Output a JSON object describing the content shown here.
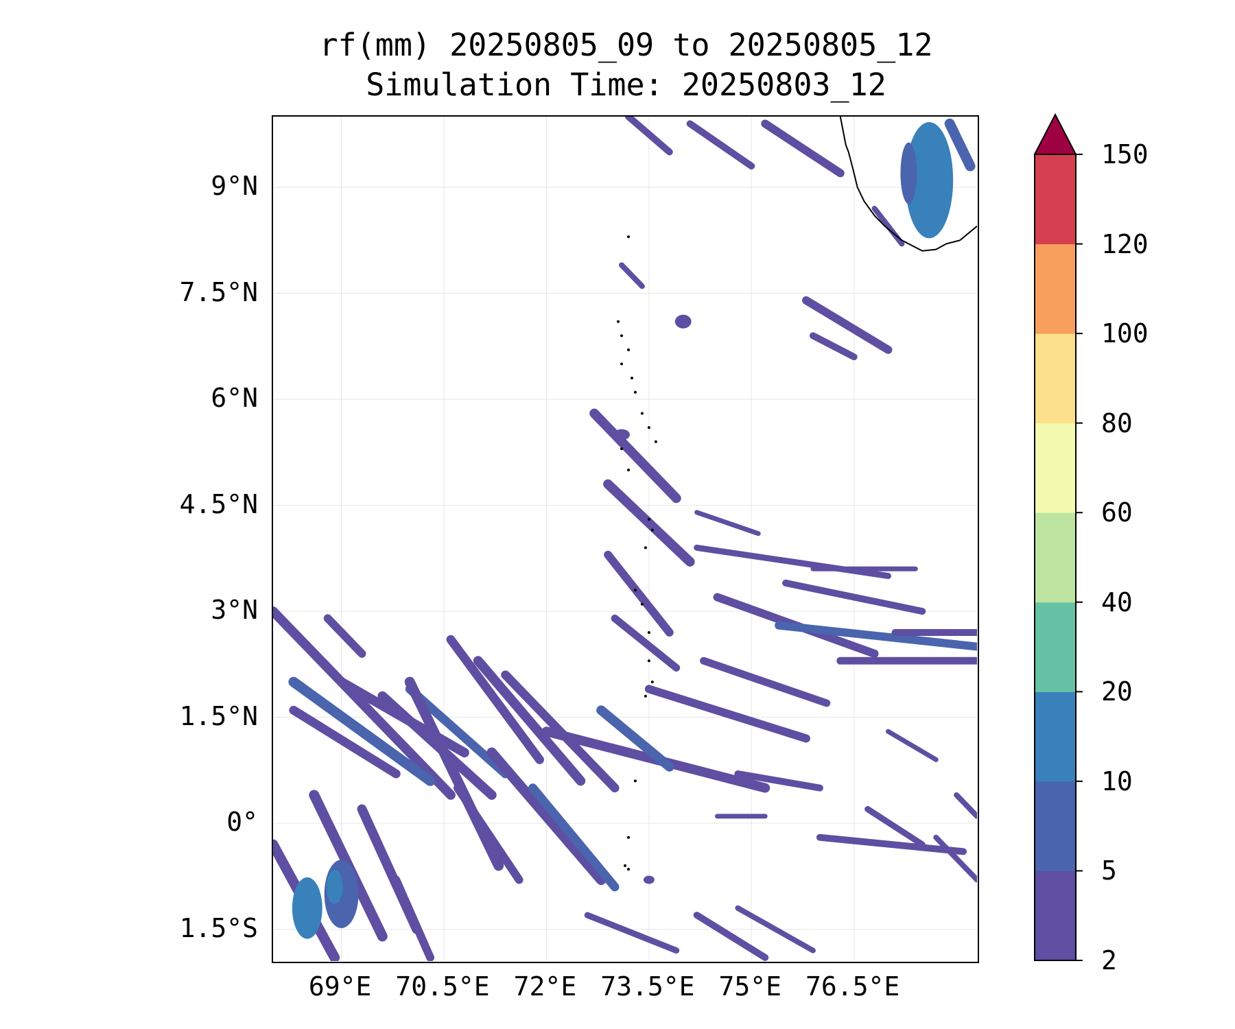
{
  "title": {
    "line1": "rf(mm) 20250805_09 to 20250805_12",
    "line2": "Simulation Time: 20250803_12"
  },
  "map": {
    "lon_range": [
      68.0,
      78.3
    ],
    "lat_range": [
      -1.95,
      10.0
    ],
    "gridlines": true,
    "grid_color": "#e6e6e6",
    "coastline_color": "#000000",
    "x_ticks": [
      {
        "lon": 69.0,
        "label": "69°E"
      },
      {
        "lon": 70.5,
        "label": "70.5°E"
      },
      {
        "lon": 72.0,
        "label": "72°E"
      },
      {
        "lon": 73.5,
        "label": "73.5°E"
      },
      {
        "lon": 75.0,
        "label": "75°E"
      },
      {
        "lon": 76.5,
        "label": "76.5°E"
      }
    ],
    "y_ticks": [
      {
        "lat": 9.0,
        "label": "9°N"
      },
      {
        "lat": 7.5,
        "label": "7.5°N"
      },
      {
        "lat": 6.0,
        "label": "6°N"
      },
      {
        "lat": 4.5,
        "label": "4.5°N"
      },
      {
        "lat": 3.0,
        "label": "3°N"
      },
      {
        "lat": 1.5,
        "label": "1.5°N"
      },
      {
        "lat": 0.0,
        "label": "0°"
      },
      {
        "lat": -1.5,
        "label": "1.5°S"
      }
    ],
    "rain_bands": [
      {
        "lon1": 68.0,
        "lat1": 3.0,
        "lon2": 70.6,
        "lat2": 0.4,
        "w": 0.14,
        "level": 0
      },
      {
        "lon1": 68.3,
        "lat1": 2.0,
        "lon2": 70.3,
        "lat2": 0.6,
        "w": 0.15,
        "level": 1
      },
      {
        "lon1": 68.3,
        "lat1": 1.6,
        "lon2": 69.8,
        "lat2": 0.7,
        "w": 0.13,
        "level": 0
      },
      {
        "lon1": 68.8,
        "lat1": 2.9,
        "lon2": 69.3,
        "lat2": 2.4,
        "w": 0.12,
        "level": 0
      },
      {
        "lon1": 69.0,
        "lat1": 2.0,
        "lon2": 70.8,
        "lat2": 1.0,
        "w": 0.14,
        "level": 0
      },
      {
        "lon1": 69.6,
        "lat1": 1.8,
        "lon2": 71.2,
        "lat2": 0.4,
        "w": 0.14,
        "level": 0
      },
      {
        "lon1": 70.0,
        "lat1": 1.9,
        "lon2": 71.4,
        "lat2": 0.7,
        "w": 0.13,
        "level": 1
      },
      {
        "lon1": 70.0,
        "lat1": 2.0,
        "lon2": 71.3,
        "lat2": -0.6,
        "w": 0.15,
        "level": 0
      },
      {
        "lon1": 70.6,
        "lat1": 2.6,
        "lon2": 71.9,
        "lat2": 0.9,
        "w": 0.13,
        "level": 0
      },
      {
        "lon1": 71.0,
        "lat1": 2.3,
        "lon2": 72.5,
        "lat2": 0.6,
        "w": 0.14,
        "level": 0
      },
      {
        "lon1": 71.4,
        "lat1": 2.1,
        "lon2": 73.0,
        "lat2": 0.5,
        "w": 0.13,
        "level": 0
      },
      {
        "lon1": 71.2,
        "lat1": 1.0,
        "lon2": 72.8,
        "lat2": -0.8,
        "w": 0.15,
        "level": 0
      },
      {
        "lon1": 71.8,
        "lat1": 0.5,
        "lon2": 73.0,
        "lat2": -0.9,
        "w": 0.13,
        "level": 1
      },
      {
        "lon1": 72.0,
        "lat1": 1.3,
        "lon2": 75.2,
        "lat2": 0.5,
        "w": 0.14,
        "level": 0
      },
      {
        "lon1": 72.8,
        "lat1": 1.6,
        "lon2": 73.8,
        "lat2": 0.8,
        "w": 0.14,
        "level": 1
      },
      {
        "lon1": 73.5,
        "lat1": 1.9,
        "lon2": 75.8,
        "lat2": 1.2,
        "w": 0.12,
        "level": 0
      },
      {
        "lon1": 74.3,
        "lat1": 2.3,
        "lon2": 76.1,
        "lat2": 1.7,
        "w": 0.11,
        "level": 0
      },
      {
        "lon1": 72.7,
        "lat1": 5.8,
        "lon2": 73.9,
        "lat2": 4.6,
        "w": 0.14,
        "level": 0
      },
      {
        "lon1": 72.9,
        "lat1": 4.8,
        "lon2": 74.1,
        "lat2": 3.7,
        "w": 0.14,
        "level": 0
      },
      {
        "lon1": 72.9,
        "lat1": 3.8,
        "lon2": 73.8,
        "lat2": 2.7,
        "w": 0.12,
        "level": 0
      },
      {
        "lon1": 73.0,
        "lat1": 2.9,
        "lon2": 73.9,
        "lat2": 2.2,
        "w": 0.11,
        "level": 0
      },
      {
        "lon1": 74.5,
        "lat1": 3.2,
        "lon2": 76.8,
        "lat2": 2.4,
        "w": 0.12,
        "level": 0
      },
      {
        "lon1": 75.4,
        "lat1": 2.8,
        "lon2": 78.3,
        "lat2": 2.5,
        "w": 0.12,
        "level": 1
      },
      {
        "lon1": 76.3,
        "lat1": 2.3,
        "lon2": 78.3,
        "lat2": 2.3,
        "w": 0.11,
        "level": 0
      },
      {
        "lon1": 77.1,
        "lat1": 2.7,
        "lon2": 78.3,
        "lat2": 2.7,
        "w": 0.1,
        "level": 0
      },
      {
        "lon1": 75.5,
        "lat1": 3.4,
        "lon2": 77.5,
        "lat2": 3.0,
        "w": 0.1,
        "level": 0
      },
      {
        "lon1": 74.2,
        "lat1": 3.9,
        "lon2": 77.0,
        "lat2": 3.5,
        "w": 0.09,
        "level": 0
      },
      {
        "lon1": 75.8,
        "lat1": 7.4,
        "lon2": 77.0,
        "lat2": 6.7,
        "w": 0.12,
        "level": 0
      },
      {
        "lon1": 75.9,
        "lat1": 6.9,
        "lon2": 76.5,
        "lat2": 6.6,
        "w": 0.1,
        "level": 0
      },
      {
        "lon1": 75.2,
        "lat1": 9.9,
        "lon2": 76.3,
        "lat2": 9.2,
        "w": 0.12,
        "level": 0
      },
      {
        "lon1": 74.1,
        "lat1": 9.9,
        "lon2": 75.0,
        "lat2": 9.3,
        "w": 0.1,
        "level": 0
      },
      {
        "lon1": 73.2,
        "lat1": 10.0,
        "lon2": 73.8,
        "lat2": 9.5,
        "w": 0.1,
        "level": 0
      },
      {
        "lon1": 77.9,
        "lat1": 9.9,
        "lon2": 78.2,
        "lat2": 9.3,
        "w": 0.15,
        "level": 1
      },
      {
        "lon1": 76.8,
        "lat1": 8.7,
        "lon2": 77.2,
        "lat2": 8.2,
        "w": 0.08,
        "level": 0
      },
      {
        "lon1": 73.1,
        "lat1": 7.9,
        "lon2": 73.4,
        "lat2": 7.6,
        "w": 0.08,
        "level": 0
      },
      {
        "lon1": 74.2,
        "lat1": 4.4,
        "lon2": 75.1,
        "lat2": 4.1,
        "w": 0.07,
        "level": 0
      },
      {
        "lon1": 68.0,
        "lat1": -0.3,
        "lon2": 68.9,
        "lat2": -1.9,
        "w": 0.15,
        "level": 0
      },
      {
        "lon1": 68.6,
        "lat1": 0.4,
        "lon2": 69.6,
        "lat2": -1.6,
        "w": 0.15,
        "level": 0
      },
      {
        "lon1": 69.3,
        "lat1": 0.2,
        "lon2": 70.1,
        "lat2": -1.5,
        "w": 0.14,
        "level": 0
      },
      {
        "lon1": 69.8,
        "lat1": -0.8,
        "lon2": 70.3,
        "lat2": -1.9,
        "w": 0.12,
        "level": 0
      },
      {
        "lon1": 70.7,
        "lat1": 0.5,
        "lon2": 71.6,
        "lat2": -0.8,
        "w": 0.12,
        "level": 0
      },
      {
        "lon1": 72.6,
        "lat1": -1.3,
        "lon2": 73.9,
        "lat2": -1.8,
        "w": 0.09,
        "level": 0
      },
      {
        "lon1": 74.2,
        "lat1": -1.3,
        "lon2": 75.2,
        "lat2": -1.9,
        "w": 0.1,
        "level": 0
      },
      {
        "lon1": 74.8,
        "lat1": -1.2,
        "lon2": 75.9,
        "lat2": -1.8,
        "w": 0.08,
        "level": 0
      },
      {
        "lon1": 74.8,
        "lat1": 0.7,
        "lon2": 76.0,
        "lat2": 0.5,
        "w": 0.1,
        "level": 0
      },
      {
        "lon1": 74.5,
        "lat1": 0.1,
        "lon2": 75.2,
        "lat2": 0.1,
        "w": 0.07,
        "level": 0
      },
      {
        "lon1": 76.0,
        "lat1": -0.2,
        "lon2": 78.1,
        "lat2": -0.4,
        "w": 0.1,
        "level": 0
      },
      {
        "lon1": 76.7,
        "lat1": 0.2,
        "lon2": 77.5,
        "lat2": -0.3,
        "w": 0.09,
        "level": 0
      },
      {
        "lon1": 77.7,
        "lat1": -0.2,
        "lon2": 78.3,
        "lat2": -0.8,
        "w": 0.08,
        "level": 0
      },
      {
        "lon1": 78.0,
        "lat1": 0.4,
        "lon2": 78.3,
        "lat2": 0.1,
        "w": 0.08,
        "level": 0
      },
      {
        "lon1": 77.0,
        "lat1": 1.3,
        "lon2": 77.7,
        "lat2": 0.9,
        "w": 0.07,
        "level": 0
      },
      {
        "lon1": 75.9,
        "lat1": 3.6,
        "lon2": 77.4,
        "lat2": 3.6,
        "w": 0.07,
        "level": 0
      }
    ],
    "rain_blobs": [
      {
        "lon": 77.6,
        "lat": 9.1,
        "rx": 0.35,
        "ry": 0.85,
        "level": 2
      },
      {
        "lon": 77.3,
        "lat": 9.2,
        "rx": 0.12,
        "ry": 0.45,
        "level": 1
      },
      {
        "lon": 68.5,
        "lat": -1.2,
        "rx": 0.22,
        "ry": 0.45,
        "level": 2
      },
      {
        "lon": 69.0,
        "lat": -1.0,
        "rx": 0.25,
        "ry": 0.5,
        "level": 1
      },
      {
        "lon": 68.9,
        "lat": -0.9,
        "rx": 0.12,
        "ry": 0.25,
        "level": 2
      },
      {
        "lon": 74.0,
        "lat": 7.1,
        "rx": 0.12,
        "ry": 0.1,
        "level": 0
      },
      {
        "lon": 73.1,
        "lat": 5.5,
        "rx": 0.12,
        "ry": 0.08,
        "level": 0
      },
      {
        "lon": 73.5,
        "lat": -0.8,
        "rx": 0.08,
        "ry": 0.06,
        "level": 0
      }
    ],
    "coastline": [
      [
        76.3,
        10.0
      ],
      [
        76.38,
        9.6
      ],
      [
        76.42,
        9.5
      ],
      [
        76.5,
        9.2
      ],
      [
        76.55,
        9.0
      ],
      [
        76.65,
        8.8
      ],
      [
        76.8,
        8.6
      ],
      [
        76.95,
        8.45
      ],
      [
        77.2,
        8.25
      ],
      [
        77.5,
        8.1
      ],
      [
        77.7,
        8.12
      ],
      [
        77.85,
        8.2
      ],
      [
        78.05,
        8.25
      ],
      [
        78.3,
        8.45
      ]
    ],
    "islands": [
      [
        73.2,
        8.3
      ],
      [
        73.05,
        7.1
      ],
      [
        73.1,
        6.9
      ],
      [
        73.2,
        6.7
      ],
      [
        73.1,
        6.5
      ],
      [
        73.25,
        6.3
      ],
      [
        73.3,
        6.1
      ],
      [
        73.4,
        5.8
      ],
      [
        73.5,
        5.6
      ],
      [
        73.6,
        5.4
      ],
      [
        73.1,
        5.3
      ],
      [
        73.2,
        5.0
      ],
      [
        73.5,
        4.3
      ],
      [
        73.55,
        4.15
      ],
      [
        73.45,
        3.9
      ],
      [
        73.3,
        3.3
      ],
      [
        73.4,
        3.1
      ],
      [
        73.5,
        2.7
      ],
      [
        73.5,
        2.3
      ],
      [
        73.55,
        2.0
      ],
      [
        73.45,
        1.8
      ],
      [
        73.3,
        0.6
      ],
      [
        73.2,
        -0.2
      ],
      [
        73.15,
        -0.6
      ],
      [
        73.2,
        -0.65
      ]
    ]
  },
  "colorbar": {
    "colors": [
      "#5e4fa2",
      "#4a64ad",
      "#3981ba",
      "#66c2a5",
      "#bde4a0",
      "#f4fbb0",
      "#fde08b",
      "#f99f5e",
      "#d53f50"
    ],
    "extend_color": "#9e0142",
    "ticks": [
      "2",
      "5",
      "10",
      "20",
      "40",
      "60",
      "80",
      "100",
      "120",
      "150"
    ]
  }
}
